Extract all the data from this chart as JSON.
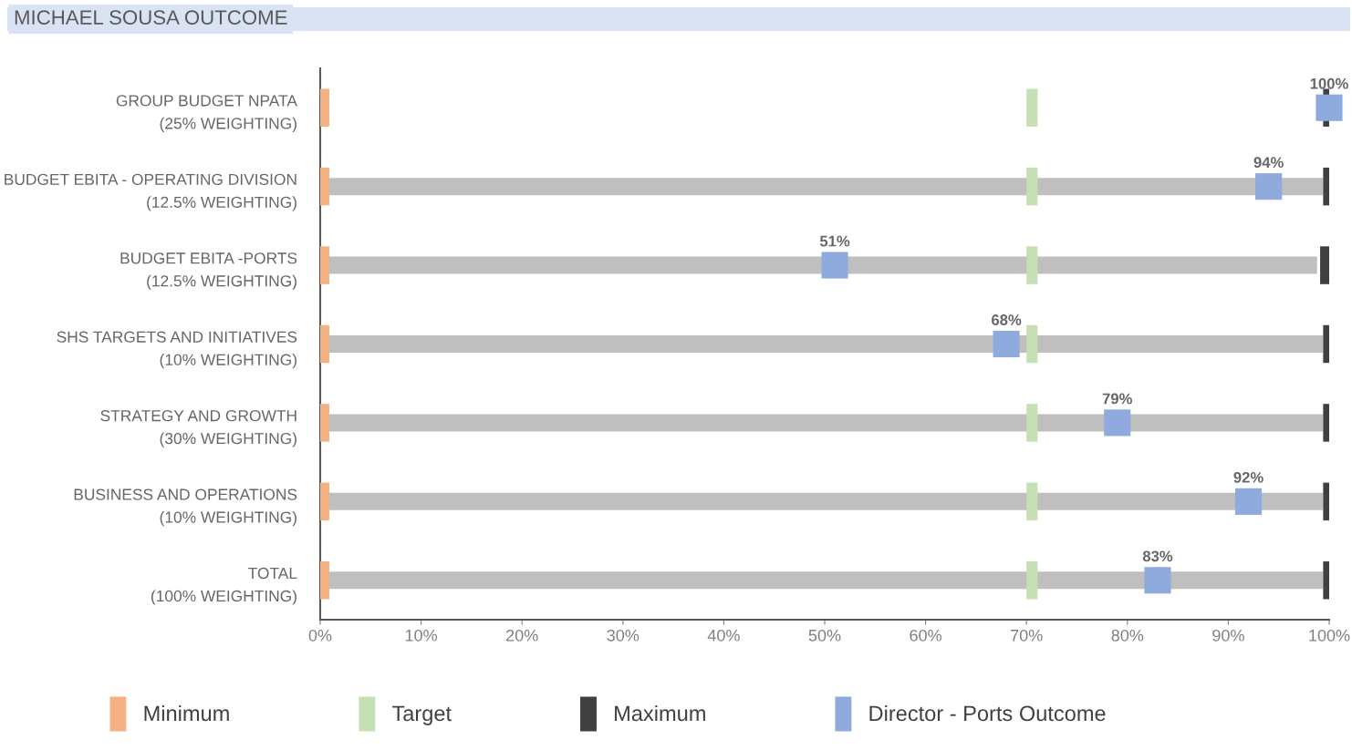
{
  "chart_data": {
    "type": "bar",
    "orientation": "horizontal",
    "title": "MICHAEL SOUSA OUTCOME",
    "categories": [
      "GROUP BUDGET NPATA\n(25% WEIGHTING)",
      "BUDGET EBITA - OPERATING DIVISION\n(12.5% WEIGHTING)",
      "BUDGET EBITA -PORTS\n(12.5% WEIGHTING)",
      "SHS TARGETS AND INITIATIVES\n(10% WEIGHTING)",
      "STRATEGY AND GROWTH\n(30% WEIGHTING)",
      "BUSINESS AND OPERATIONS\n(10% WEIGHTING)",
      "TOTAL\n(100% WEIGHTING)"
    ],
    "series": [
      {
        "color": "#bfbfbf",
        "values": [
          null,
          99.4,
          98.8,
          99.4,
          99.4,
          99.4,
          99.4
        ]
      },
      {
        "name": "Minimum",
        "color": "#f4b183",
        "base": [
          0,
          0,
          0,
          0,
          0,
          0,
          0
        ],
        "values": [
          0.9,
          0.9,
          0.9,
          0.9,
          0.9,
          0.9,
          0.9
        ]
      },
      {
        "name": "Target",
        "color": "#c5e0b4",
        "base": [
          70,
          70,
          70,
          70,
          70,
          70,
          70
        ],
        "values": [
          1.1,
          1.1,
          1.1,
          1.1,
          1.1,
          1.1,
          1.1
        ]
      },
      {
        "name": "Maximum",
        "color": "#404040",
        "base": [
          99.4,
          99.4,
          99.1,
          99.4,
          99.4,
          99.4,
          99.4
        ],
        "values": [
          0.9,
          0.9,
          0.9,
          0.9,
          0.9,
          0.9,
          0.9
        ]
      },
      {
        "type": "scatter",
        "name": "Director - Ports Outcome",
        "color": "#8faadc",
        "marker": "square",
        "values": [
          100,
          94,
          51,
          68,
          79,
          92,
          83
        ],
        "value_labels": [
          "100%",
          "94%",
          "51%",
          "68%",
          "79%",
          "92%",
          "83%"
        ]
      }
    ],
    "xlim": [
      0,
      100
    ],
    "xticks": [
      {
        "value": 0,
        "label": "0%"
      },
      {
        "value": 10,
        "label": "10%"
      },
      {
        "value": 20,
        "label": "20%"
      },
      {
        "value": 30,
        "label": "30%"
      },
      {
        "value": 40,
        "label": "40%"
      },
      {
        "value": 50,
        "label": "50%"
      },
      {
        "value": 60,
        "label": "60%"
      },
      {
        "value": 70,
        "label": "70%"
      },
      {
        "value": 80,
        "label": "80%"
      },
      {
        "value": 90,
        "label": "90%"
      },
      {
        "value": 100,
        "label": "100%"
      }
    ],
    "grid": false,
    "legend": "bottom"
  }
}
